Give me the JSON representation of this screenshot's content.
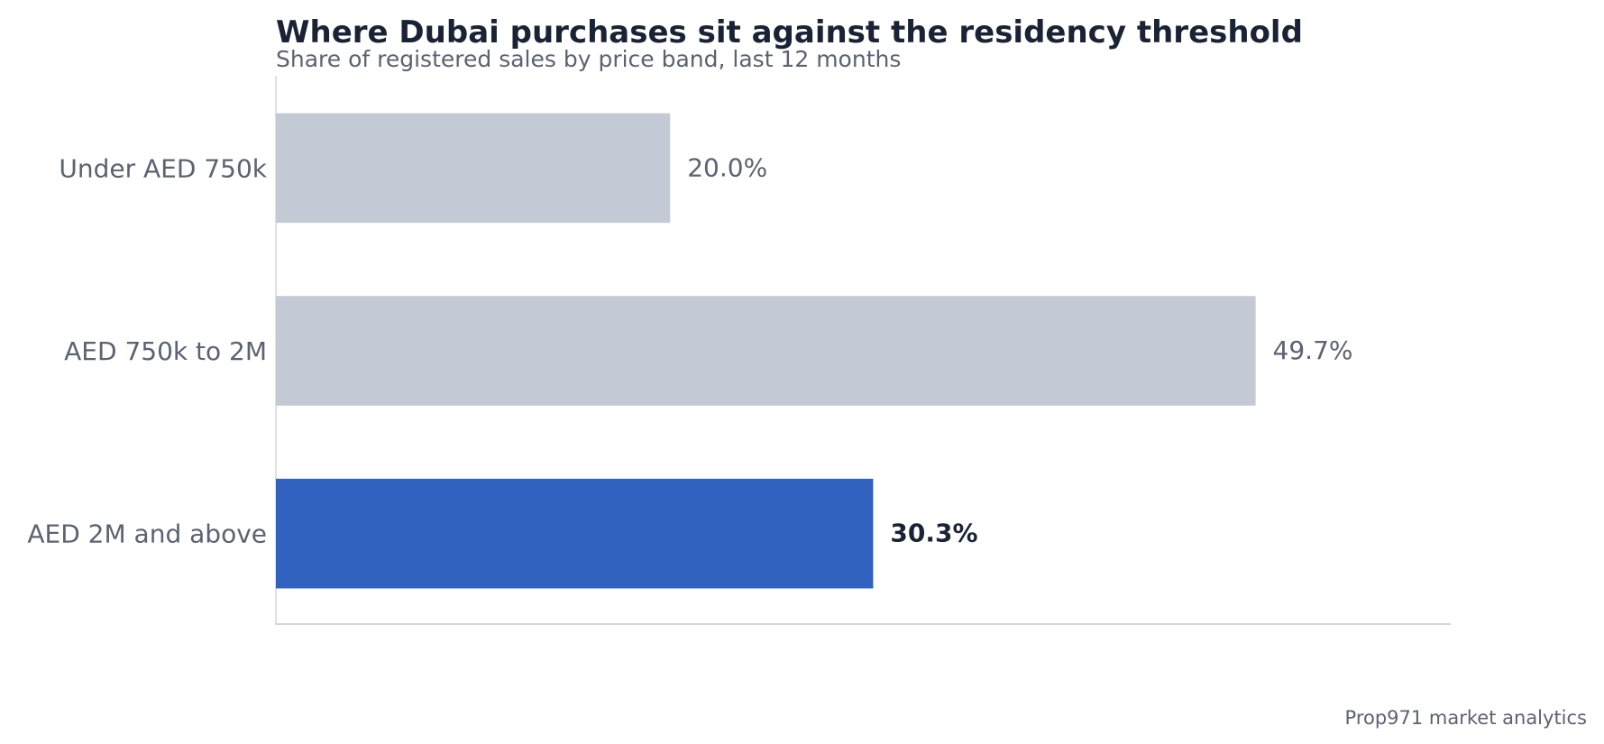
{
  "chart_data": {
    "type": "bar",
    "orientation": "horizontal",
    "title": "Where Dubai purchases sit against the residency threshold",
    "subtitle": "Share of registered sales by price band, last 12 months",
    "categories": [
      "Under AED 750k",
      "AED 750k to 2M",
      "AED 2M and above"
    ],
    "values": [
      20.0,
      49.7,
      30.3
    ],
    "value_labels": [
      "20.0%",
      "49.7%",
      "30.3%"
    ],
    "highlight_index": 2,
    "xlim": [
      0,
      59.6
    ],
    "grid": false,
    "legend": "none",
    "xlabel": "",
    "ylabel": ""
  },
  "colors": {
    "bar_default": "#c3c9d5",
    "bar_highlight": "#3162c0",
    "title": "#1a2236",
    "muted_text": "#5b6272",
    "axis": "#d3d6dc"
  },
  "footer": {
    "source": "Prop971 market analytics"
  }
}
